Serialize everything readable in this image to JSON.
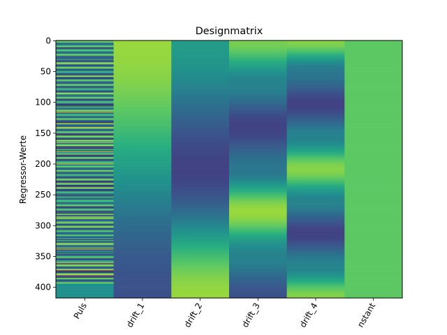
{
  "chart_data": {
    "type": "heatmap",
    "title": "Designmatrix",
    "xlabel": "",
    "ylabel": "Regressor-Werte",
    "columns": [
      "Puls",
      "drift_1",
      "drift_2",
      "drift_3",
      "drift_4",
      "nstant"
    ],
    "n_rows": 418,
    "ylim": [
      418,
      0
    ],
    "yticks": [
      0,
      50,
      100,
      150,
      200,
      250,
      300,
      350,
      400
    ],
    "colormap": "viridis",
    "grid": false,
    "legend": "none",
    "column_profiles": {
      "Puls": {
        "pattern": "oscillating pulse regressor, rapid row-to-row variation",
        "last_rows_value": 0.5
      },
      "drift_1": {
        "rows": [
          0,
          418
        ],
        "values": [
          0.85,
          0.25
        ]
      },
      "drift_2": {
        "rows": [
          0,
          209,
          418
        ],
        "values": [
          0.55,
          0.2,
          0.85
        ]
      },
      "drift_3": {
        "rows": [
          0,
          70,
          140,
          209,
          278,
          348,
          418
        ],
        "values": [
          0.8,
          0.45,
          0.2,
          0.4,
          0.85,
          0.45,
          0.25
        ]
      },
      "drift_4": {
        "rows": [
          0,
          52,
          104,
          157,
          209,
          261,
          313,
          366,
          418
        ],
        "values": [
          0.82,
          0.4,
          0.2,
          0.45,
          0.82,
          0.45,
          0.2,
          0.45,
          0.82
        ]
      },
      "nstant": {
        "rows": [
          0,
          418
        ],
        "values": [
          0.75,
          0.75
        ]
      }
    }
  }
}
